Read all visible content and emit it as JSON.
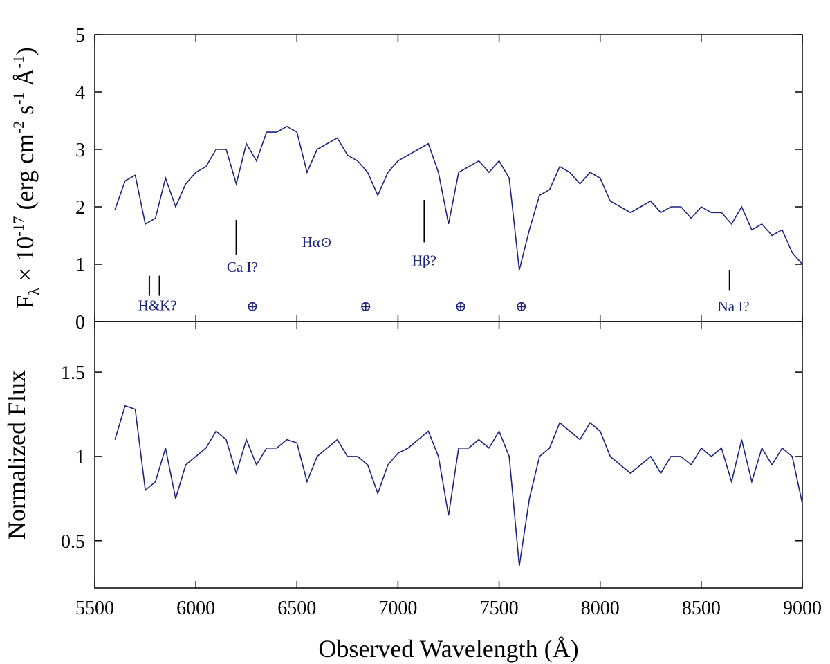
{
  "chart_data": [
    {
      "type": "line",
      "ylabel": [
        {
          "text": "F"
        },
        {
          "text": "λ",
          "sub": true
        },
        {
          "text": " × 10"
        },
        {
          "text": "-17",
          "sup": true
        },
        {
          "text": " (erg cm"
        },
        {
          "text": "-2",
          "sup": true
        },
        {
          "text": " s"
        },
        {
          "text": "-1",
          "sup": true
        },
        {
          "text": " Å"
        },
        {
          "text": "-1",
          "sup": true
        },
        {
          "text": ")"
        }
      ],
      "xlim": [
        5500,
        9000
      ],
      "xticks": [
        5500,
        6000,
        6500,
        7000,
        7500,
        8000,
        8500,
        9000
      ],
      "ylim": [
        0,
        5
      ],
      "yticks": [
        0,
        1,
        2,
        3,
        4,
        5
      ],
      "x": [
        5600,
        5650,
        5700,
        5750,
        5800,
        5850,
        5900,
        5950,
        6000,
        6050,
        6100,
        6150,
        6200,
        6250,
        6300,
        6350,
        6400,
        6450,
        6500,
        6550,
        6600,
        6650,
        6700,
        6750,
        6800,
        6850,
        6900,
        6950,
        7000,
        7050,
        7100,
        7150,
        7200,
        7250,
        7300,
        7350,
        7400,
        7450,
        7500,
        7550,
        7600,
        7650,
        7700,
        7750,
        7800,
        7850,
        7900,
        7950,
        8000,
        8050,
        8100,
        8150,
        8200,
        8250,
        8300,
        8350,
        8400,
        8450,
        8500,
        8550,
        8600,
        8650,
        8700,
        8750,
        8800,
        8850,
        8900,
        8950,
        9000
      ],
      "series": [
        {
          "color": "#1a237e",
          "values": [
            1.95,
            2.45,
            2.55,
            1.7,
            1.8,
            2.5,
            2.0,
            2.4,
            2.6,
            2.7,
            3.0,
            3.0,
            2.4,
            3.1,
            2.8,
            3.3,
            3.3,
            3.4,
            3.3,
            2.6,
            3.0,
            3.1,
            3.2,
            2.9,
            2.8,
            2.6,
            2.2,
            2.6,
            2.8,
            2.9,
            3.0,
            3.1,
            2.6,
            1.7,
            2.6,
            2.7,
            2.8,
            2.6,
            2.8,
            2.5,
            0.9,
            1.6,
            2.2,
            2.3,
            2.7,
            2.6,
            2.4,
            2.6,
            2.5,
            2.1,
            2.0,
            1.9,
            2.0,
            2.1,
            1.9,
            2.0,
            2.0,
            1.8,
            2.0,
            1.9,
            1.9,
            1.7,
            2.0,
            1.6,
            1.7,
            1.5,
            1.6,
            1.2,
            1.0
          ]
        }
      ],
      "line_markers": [
        {
          "x": 5770,
          "y": [
            0.45,
            0.8
          ]
        },
        {
          "x": 5820,
          "y": [
            0.45,
            0.8
          ]
        },
        {
          "x": 6200,
          "y": [
            1.17,
            1.77
          ]
        },
        {
          "x": 7130,
          "y": [
            1.38,
            2.12
          ]
        },
        {
          "x": 8640,
          "y": [
            0.55,
            0.9
          ]
        }
      ],
      "annotations": [
        {
          "text": "H&K?",
          "x": 5810,
          "y": 0.2
        },
        {
          "text": "Ca I?",
          "x": 6230,
          "y": 0.87
        },
        {
          "text": "Hα⊙",
          "x": 6600,
          "y": 1.3
        },
        {
          "text": "Hβ?",
          "x": 7130,
          "y": 0.98
        },
        {
          "text": "Na I?",
          "x": 8660,
          "y": 0.18
        },
        {
          "text": "⊕",
          "x": 6280,
          "y": 0.18
        },
        {
          "text": "⊕",
          "x": 6840,
          "y": 0.18
        },
        {
          "text": "⊕",
          "x": 7310,
          "y": 0.18
        },
        {
          "text": "⊕",
          "x": 7610,
          "y": 0.18
        }
      ]
    },
    {
      "type": "line",
      "ylabel": [
        {
          "text": "Normalized Flux"
        }
      ],
      "xlabel": "Observed Wavelength (Å)",
      "xlim": [
        5500,
        9000
      ],
      "xticks": [
        5500,
        6000,
        6500,
        7000,
        7500,
        8000,
        8500,
        9000
      ],
      "ylim": [
        0.22,
        1.8
      ],
      "yticks": [
        0.5,
        1,
        1.5
      ],
      "x": [
        5600,
        5650,
        5700,
        5750,
        5800,
        5850,
        5900,
        5950,
        6000,
        6050,
        6100,
        6150,
        6200,
        6250,
        6300,
        6350,
        6400,
        6450,
        6500,
        6550,
        6600,
        6650,
        6700,
        6750,
        6800,
        6850,
        6900,
        6950,
        7000,
        7050,
        7100,
        7150,
        7200,
        7250,
        7300,
        7350,
        7400,
        7450,
        7500,
        7550,
        7600,
        7650,
        7700,
        7750,
        7800,
        7850,
        7900,
        7950,
        8000,
        8050,
        8100,
        8150,
        8200,
        8250,
        8300,
        8350,
        8400,
        8450,
        8500,
        8550,
        8600,
        8650,
        8700,
        8750,
        8800,
        8850,
        8900,
        8950,
        9000
      ],
      "series": [
        {
          "color": "#1a237e",
          "values": [
            1.1,
            1.3,
            1.28,
            0.8,
            0.85,
            1.05,
            0.75,
            0.95,
            1.0,
            1.05,
            1.15,
            1.1,
            0.9,
            1.1,
            0.95,
            1.05,
            1.05,
            1.1,
            1.08,
            0.85,
            1.0,
            1.05,
            1.1,
            1.0,
            1.0,
            0.95,
            0.78,
            0.95,
            1.02,
            1.05,
            1.1,
            1.15,
            1.0,
            0.65,
            1.05,
            1.05,
            1.1,
            1.05,
            1.15,
            1.0,
            0.35,
            0.75,
            1.0,
            1.05,
            1.2,
            1.15,
            1.1,
            1.2,
            1.15,
            1.0,
            0.95,
            0.9,
            0.95,
            1.0,
            0.9,
            1.0,
            1.0,
            0.95,
            1.05,
            1.0,
            1.05,
            0.85,
            1.1,
            0.85,
            1.05,
            0.95,
            1.05,
            1.0,
            0.72
          ]
        }
      ]
    }
  ]
}
